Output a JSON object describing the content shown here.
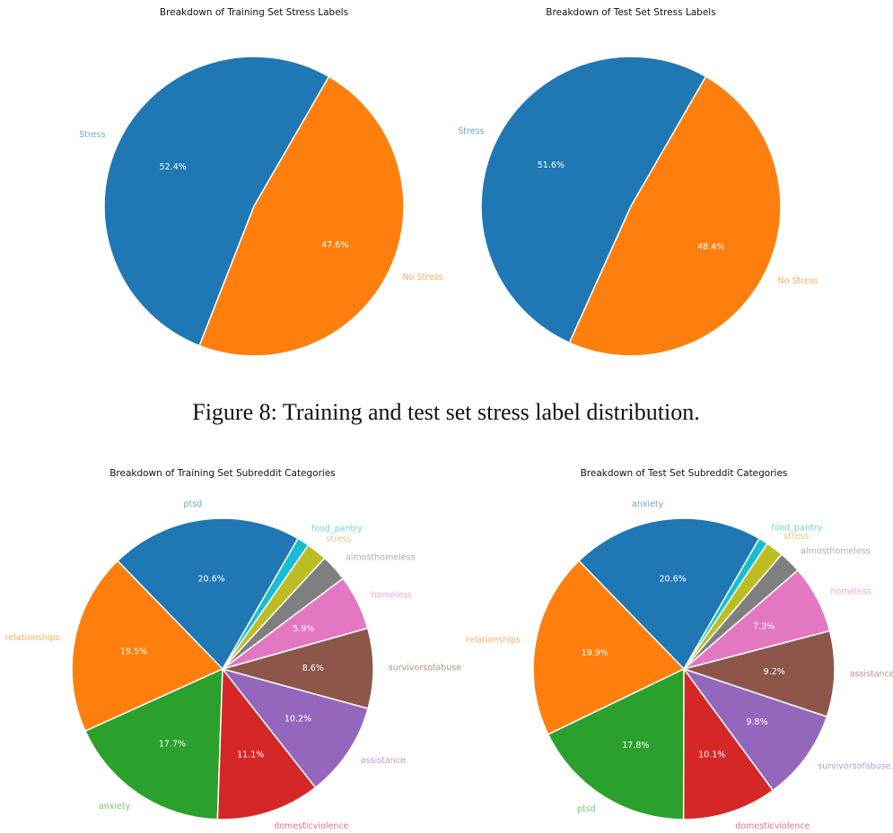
{
  "chart_data": [
    {
      "type": "pie",
      "title": "Breakdown of Training Set Stress Labels",
      "categories": [
        "Stress",
        "No Stress"
      ],
      "values": [
        52.4,
        47.6
      ],
      "value_labels": [
        "52.4%",
        "47.6%"
      ],
      "colors": [
        "#1f77b4",
        "#ff7f0e"
      ],
      "startangle": 60
    },
    {
      "type": "pie",
      "title": "Breakdown of Test Set Stress Labels",
      "categories": [
        "Stress",
        "No Stress"
      ],
      "values": [
        51.6,
        48.4
      ],
      "value_labels": [
        "51.6%",
        "48.4%"
      ],
      "colors": [
        "#1f77b4",
        "#ff7f0e"
      ],
      "startangle": 60
    },
    {
      "type": "pie",
      "title": "Breakdown of Training Set Subreddit Categories",
      "categories": [
        "ptsd",
        "relationships",
        "anxiety",
        "domesticviolence",
        "assistance",
        "survivorsofabuse",
        "homeless",
        "almosthomeless",
        "stress",
        "food_pantry"
      ],
      "values": [
        20.6,
        19.5,
        17.7,
        11.1,
        10.2,
        8.6,
        5.9,
        2.9,
        2.2,
        1.3
      ],
      "value_labels": [
        "20.6%",
        "19.5%",
        "17.7%",
        "11.1%",
        "10.2%",
        "8.6%",
        "5.9%",
        null,
        null,
        null
      ],
      "colors": [
        "#1f77b4",
        "#ff7f0e",
        "#2ca02c",
        "#d62728",
        "#9467bd",
        "#8c564b",
        "#e377c2",
        "#7f7f7f",
        "#bcbd22",
        "#17becf"
      ],
      "startangle": 60
    },
    {
      "type": "pie",
      "title": "Breakdown of Test Set Subreddit Categories",
      "categories": [
        "anxiety",
        "relationships",
        "ptsd",
        "domesticviolence",
        "survivorsofabuse.",
        "assistance",
        "homeless",
        "almosthomeless",
        "stress",
        "food_pantry"
      ],
      "values": [
        20.6,
        19.9,
        17.8,
        10.1,
        9.8,
        9.2,
        7.3,
        2.4,
        1.9,
        1.0
      ],
      "value_labels": [
        "20.6%",
        "19.9%",
        "17.8%",
        "10.1%",
        "9.8%",
        "9.2%",
        "7.3%",
        null,
        null,
        null
      ],
      "colors": [
        "#1f77b4",
        "#ff7f0e",
        "#2ca02c",
        "#d62728",
        "#9467bd",
        "#8c564b",
        "#e377c2",
        "#7f7f7f",
        "#bcbd22",
        "#17becf"
      ],
      "startangle": 60
    }
  ],
  "caption": "Figure 8: Training and test set stress label distribution."
}
